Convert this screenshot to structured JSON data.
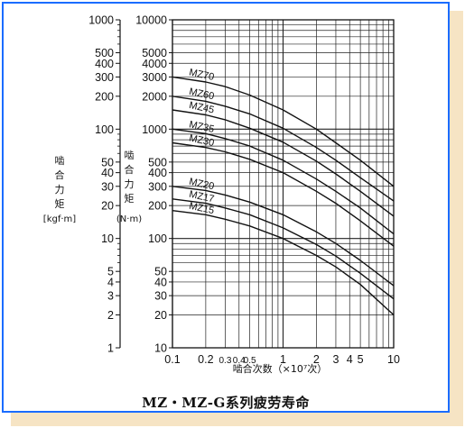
{
  "figure_caption": "MZ・MZ-G系列疲劳寿命",
  "chart_data": {
    "type": "line",
    "title": "",
    "x_scale": "log",
    "y_scale": "log",
    "xlim": [
      0.1,
      10
    ],
    "ylim": [
      10,
      10000
    ],
    "ylim_secondary": [
      1,
      1000
    ],
    "grid": true,
    "xlabel": "啮合次数（×10⁷次）",
    "ylabel": "啮合力矩",
    "ylabel_unit": "(N·m)",
    "ylabel_secondary": "啮合力矩",
    "ylabel_secondary_unit": "[kgf·m]",
    "x_ticks": [
      {
        "value": 0.1,
        "label": "0.1"
      },
      {
        "value": 0.2,
        "label": "0.2"
      },
      {
        "value": 0.3,
        "label": "0.3"
      },
      {
        "value": 0.4,
        "label": "0.4"
      },
      {
        "value": 0.5,
        "label": "0.5"
      },
      {
        "value": 1,
        "label": "1"
      },
      {
        "value": 2,
        "label": "2"
      },
      {
        "value": 3,
        "label": "3"
      },
      {
        "value": 4,
        "label": "4"
      },
      {
        "value": 5,
        "label": "5"
      },
      {
        "value": 10,
        "label": "10"
      }
    ],
    "y_ticks": [
      10,
      20,
      30,
      40,
      50,
      100,
      200,
      300,
      400,
      500,
      1000,
      2000,
      3000,
      4000,
      5000,
      10000
    ],
    "y_ticks_secondary": [
      1,
      2,
      3,
      4,
      5,
      10,
      20,
      30,
      40,
      50,
      100,
      200,
      300,
      400,
      500,
      1000
    ],
    "x": [
      0.1,
      0.2,
      0.3,
      0.5,
      1,
      2,
      3,
      5,
      10
    ],
    "series": [
      {
        "name": "MZ70",
        "values": [
          3000,
          2700,
          2450,
          2050,
          1500,
          1000,
          750,
          520,
          300
        ]
      },
      {
        "name": "MZ60",
        "values": [
          2000,
          1800,
          1620,
          1380,
          1020,
          680,
          520,
          360,
          220
        ]
      },
      {
        "name": "MZ45",
        "values": [
          1500,
          1350,
          1220,
          1020,
          760,
          510,
          390,
          270,
          160
        ]
      },
      {
        "name": "MZ35",
        "values": [
          1000,
          910,
          820,
          700,
          520,
          350,
          270,
          190,
          110
        ]
      },
      {
        "name": "MZ30",
        "values": [
          750,
          680,
          620,
          530,
          400,
          270,
          210,
          145,
          85
        ]
      },
      {
        "name": "MZ20",
        "values": [
          300,
          275,
          250,
          215,
          165,
          115,
          90,
          63,
          37
        ]
      },
      {
        "name": "MZ17",
        "values": [
          230,
          210,
          190,
          165,
          125,
          88,
          69,
          48,
          28
        ]
      },
      {
        "name": "MZ15",
        "values": [
          180,
          165,
          150,
          130,
          100,
          70,
          55,
          38,
          20
        ]
      }
    ]
  }
}
